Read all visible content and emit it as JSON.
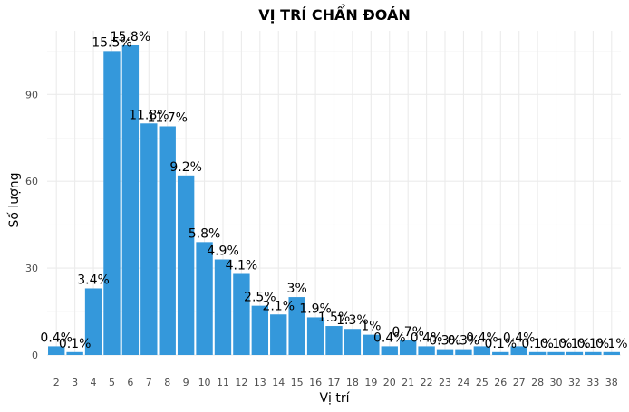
{
  "chart_data": {
    "type": "bar",
    "title": "VỊ TRÍ CHẨN ĐOÁN",
    "xlabel": "Vị trí",
    "ylabel": "Số lượng",
    "categories": [
      "2",
      "3",
      "4",
      "5",
      "6",
      "7",
      "8",
      "9",
      "10",
      "11",
      "12",
      "13",
      "14",
      "15",
      "16",
      "17",
      "18",
      "19",
      "20",
      "21",
      "22",
      "23",
      "24",
      "25",
      "26",
      "27",
      "28",
      "30",
      "32",
      "33",
      "38"
    ],
    "values": [
      3,
      1,
      23,
      105,
      107,
      80,
      79,
      62,
      39,
      33,
      28,
      17,
      14,
      20,
      13,
      10,
      9,
      7,
      3,
      5,
      3,
      2,
      2,
      3,
      1,
      3,
      1,
      1,
      1,
      1,
      1
    ],
    "labels": [
      "0.4%",
      "0.1%",
      "3.4%",
      "15.5%",
      "15.8%",
      "11.8%",
      "11.7%",
      "9.2%",
      "5.8%",
      "4.9%",
      "4.1%",
      "2.5%",
      "2.1%",
      "3%",
      "1.9%",
      "1.5%",
      "1.3%",
      "1%",
      "0.4%",
      "0.7%",
      "0.4%",
      "0.3%",
      "0.3%",
      "0.4%",
      "0.1%",
      "0.4%",
      "0.1%",
      "0.1%",
      "0.1%",
      "0.1%",
      "0.1%"
    ],
    "yticks": [
      0,
      30,
      60,
      90
    ],
    "ylim": [
      0,
      112
    ],
    "grid": true,
    "bar_color": "#3498db"
  }
}
